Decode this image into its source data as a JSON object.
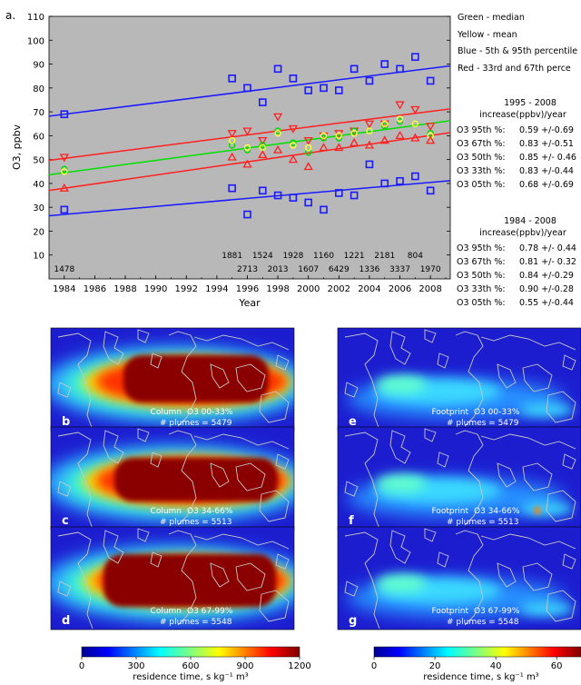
{
  "chart_data": [
    {
      "panel": "a.",
      "type": "scatter",
      "ylabel": "O3, ppbv",
      "xlabel": "Year",
      "xlim": [
        1983,
        2009.3
      ],
      "ylim": [
        0,
        110
      ],
      "x_ticks": [
        1984,
        1986,
        1988,
        1990,
        1992,
        1994,
        1996,
        1998,
        2000,
        2002,
        2004,
        2006,
        2008
      ],
      "y_ticks": [
        10,
        20,
        30,
        40,
        50,
        60,
        70,
        80,
        90,
        100,
        110
      ],
      "background": "#b8b8b8",
      "grid": false,
      "legend": {
        "position": "right",
        "entries": [
          "Green - median",
          "Yellow - mean",
          "Blue - 5th & 95th percentile",
          "Red - 33rd and 67th perce"
        ]
      },
      "series": [
        {
          "color": "#1a1aff",
          "marker": "square",
          "x": [
            1984,
            1995,
            1996,
            1997,
            1998,
            1999,
            2000,
            2001,
            2002,
            2003,
            2004,
            2005,
            2006,
            2007,
            2008
          ],
          "y": [
            69,
            84,
            80,
            74,
            88,
            84,
            79,
            80,
            79,
            88,
            83,
            90,
            88,
            93,
            83
          ]
        },
        {
          "color": "#ff2020",
          "marker": "triangle-down",
          "x": [
            1984,
            1995,
            1996,
            1997,
            1998,
            1999,
            2000,
            2001,
            2002,
            2003,
            2004,
            2005,
            2006,
            2007,
            2008
          ],
          "y": [
            51,
            61,
            62,
            58,
            68,
            63,
            58,
            60,
            61,
            62,
            65,
            65,
            73,
            71,
            64
          ]
        },
        {
          "color": "#00d800",
          "marker": "circle",
          "x": [
            1984,
            1995,
            1996,
            1997,
            1998,
            1999,
            2000,
            2001,
            2002,
            2003,
            2004,
            2005,
            2006,
            2007,
            2008
          ],
          "y": [
            46,
            56,
            54,
            56,
            62,
            57,
            53,
            59,
            59,
            62,
            62,
            64,
            66,
            65,
            61
          ]
        },
        {
          "color": "#ffff40",
          "marker": "circle",
          "x": [
            1984,
            1995,
            1996,
            1997,
            1998,
            1999,
            2000,
            2001,
            2002,
            2003,
            2004,
            2005,
            2006,
            2007,
            2008
          ],
          "y": [
            45,
            58,
            55,
            55,
            61,
            56,
            55,
            60,
            60,
            61,
            62,
            65,
            67,
            65,
            60
          ]
        },
        {
          "color": "#ff2020",
          "marker": "triangle-up",
          "x": [
            1984,
            1995,
            1996,
            1997,
            1998,
            1999,
            2000,
            2001,
            2002,
            2003,
            2004,
            2005,
            2006,
            2007,
            2008
          ],
          "y": [
            38,
            51,
            48,
            52,
            54,
            50,
            47,
            55,
            55,
            57,
            56,
            58,
            60,
            59,
            58
          ]
        },
        {
          "color": "#1a1aff",
          "marker": "square",
          "x": [
            1984,
            1995,
            1996,
            1997,
            1998,
            1999,
            2000,
            2001,
            2002,
            2003,
            2004,
            2005,
            2006,
            2007,
            2008
          ],
          "y": [
            29,
            38,
            27,
            37,
            35,
            34,
            32,
            29,
            36,
            35,
            48,
            40,
            41,
            43,
            37
          ]
        }
      ],
      "trend_lines": [
        {
          "color": "#1a1aff",
          "y1984": 69,
          "y2009": 89
        },
        {
          "color": "#ff2020",
          "y1984": 50.5,
          "y2009": 71
        },
        {
          "color": "#00e000",
          "y1984": 44.5,
          "y2009": 66
        },
        {
          "color": "#ff2020",
          "y1984": 38,
          "y2009": 61
        },
        {
          "color": "#1a1aff",
          "y1984": 27,
          "y2009": 41
        }
      ],
      "counts_upper": {
        "x": [
          1995,
          1997,
          1999,
          2001,
          2003,
          2005,
          2007
        ],
        "labels": [
          "1881",
          "1524",
          "1928",
          "1160",
          "1221",
          "2181",
          "804"
        ]
      },
      "counts_lower": {
        "x": [
          1984,
          1996,
          1998,
          2000,
          2002,
          2004,
          2006,
          2008
        ],
        "labels": [
          "1478",
          "2713",
          "2013",
          "1607",
          "6429",
          "1336",
          "3337",
          "1970"
        ]
      },
      "trend_tables": [
        {
          "period": "1995 - 2008",
          "header": "increase(ppbv)/year",
          "rows": [
            {
              "label": "O3 95th %:",
              "value": "0.59 +/-0.69"
            },
            {
              "label": "O3 67th %:",
              "value": "0.83 +/-0.51"
            },
            {
              "label": "O3 50th %:",
              "value": "0.85 +/- 0.46"
            },
            {
              "label": "O3 33th %:",
              "value": "0.83 +/-0.44"
            },
            {
              "label": "O3 05th %:",
              "value": "0.68 +/-0.69"
            }
          ]
        },
        {
          "period": "1984 - 2008",
          "header": "increase(ppbv)/year",
          "rows": [
            {
              "label": "O3 95th %:",
              "value": "0.78 +/- 0.44"
            },
            {
              "label": "O3 67th %:",
              "value": "0.81 +/- 0.32"
            },
            {
              "label": "O3 50th %:",
              "value": "0.84 +/-0.29"
            },
            {
              "label": "O3 33th %:",
              "value": "0.90 +/-0.28"
            },
            {
              "label": "O3 05th %:",
              "value": "0.55 +/-0.44"
            }
          ]
        }
      ]
    },
    {
      "type": "heatmap",
      "maps": [
        {
          "letter": "b",
          "title": "Column",
          "group": "O3 00-33%",
          "plumes": "# plumes = 5479",
          "kind": "column"
        },
        {
          "letter": "c",
          "title": "Column",
          "group": "O3 34-66%",
          "plumes": "# plumes = 5513",
          "kind": "column"
        },
        {
          "letter": "d",
          "title": "Column",
          "group": "O3 67-99%",
          "plumes": "# plumes = 5548",
          "kind": "column"
        },
        {
          "letter": "e",
          "title": "Footprint",
          "group": "O3 00-33%",
          "plumes": "# plumes = 5479",
          "kind": "footprint"
        },
        {
          "letter": "f",
          "title": "Footprint",
          "group": "O3 34-66%",
          "plumes": "# plumes = 5513",
          "kind": "footprint"
        },
        {
          "letter": "g",
          "title": "Footprint",
          "group": "O3 67-99%",
          "plumes": "# plumes = 5548",
          "kind": "footprint"
        }
      ],
      "colorbars": [
        {
          "ticks": [
            "0",
            "300",
            "600",
            "900",
            "1200"
          ],
          "label": "residence time, s kg⁻¹ m³"
        },
        {
          "ticks": [
            "0",
            "20",
            "40",
            "60"
          ],
          "label": "residence time, s kg⁻¹ m³"
        }
      ]
    }
  ]
}
